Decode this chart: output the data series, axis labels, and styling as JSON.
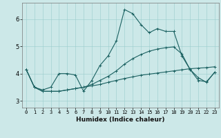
{
  "xlabel": "Humidex (Indice chaleur)",
  "ylabel": "",
  "background_color": "#cce8e8",
  "grid_color": "#99cccc",
  "line_color": "#1a6060",
  "xlim": [
    -0.5,
    23.5
  ],
  "ylim": [
    2.75,
    6.6
  ],
  "xticks": [
    0,
    1,
    2,
    3,
    4,
    5,
    6,
    7,
    8,
    9,
    10,
    11,
    12,
    13,
    14,
    15,
    16,
    17,
    18,
    19,
    20,
    21,
    22,
    23
  ],
  "yticks": [
    3,
    4,
    5,
    6
  ],
  "series": [
    [
      4.15,
      3.5,
      3.4,
      3.5,
      4.0,
      4.0,
      3.95,
      3.35,
      3.75,
      4.3,
      4.65,
      5.2,
      6.35,
      6.2,
      5.8,
      5.5,
      5.65,
      5.55,
      5.55,
      4.65,
      4.15,
      3.75,
      3.7,
      4.05
    ],
    [
      4.15,
      3.5,
      3.35,
      3.35,
      3.35,
      3.4,
      3.45,
      3.5,
      3.55,
      3.6,
      3.68,
      3.75,
      3.82,
      3.88,
      3.94,
      3.98,
      4.02,
      4.06,
      4.1,
      4.14,
      4.18,
      4.2,
      4.22,
      4.25
    ],
    [
      4.15,
      3.5,
      3.35,
      3.35,
      3.35,
      3.4,
      3.45,
      3.5,
      3.6,
      3.75,
      3.9,
      4.1,
      4.35,
      4.55,
      4.7,
      4.82,
      4.9,
      4.95,
      4.98,
      4.72,
      4.15,
      3.85,
      3.68,
      4.05
    ]
  ],
  "tick_fontsize": 5.0,
  "xlabel_fontsize": 6.5,
  "marker_size": 2.5,
  "line_width": 0.8
}
